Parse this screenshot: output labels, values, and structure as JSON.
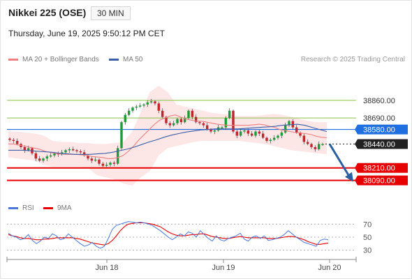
{
  "header": {
    "title": "Nikkei 225 (OSE)",
    "timeframe": "30 MIN",
    "datetime": "Thursday, June 19, 2025 9:50:12 PM CET"
  },
  "legend": {
    "ma20_bb": "MA 20 + Bollinger Bands",
    "ma50": "MA 50",
    "credit": "Research © 2025 Trading Central",
    "rsi": "RSI",
    "ma9": "9MA"
  },
  "colors": {
    "ma20": "#ef8080",
    "ma50": "#3a5fa8",
    "bollinger_fill": "#fde0e0",
    "bull": "#1f9c3a",
    "bear": "#c0282f",
    "support": "#e60000",
    "resistance": "#8ac24a",
    "pivot": "#1f6fe0",
    "rsi": "#4a78d8",
    "rsi_ma": "#e60000",
    "arrow": "#2a5fa0"
  },
  "chart_data": [
    {
      "type": "candlestick",
      "title": "Nikkei 225 (OSE)",
      "timeframe": "30 MIN",
      "x_labels": [
        "Jun 18",
        "Jun 19",
        "Jun 20"
      ],
      "y_range": [
        37980,
        39020
      ],
      "close_series": [
        38480,
        38470,
        38440,
        38410,
        38380,
        38400,
        38350,
        38300,
        38280,
        38300,
        38320,
        38330,
        38350,
        38340,
        38360,
        38380,
        38390,
        38380,
        38370,
        38360,
        38330,
        38300,
        38280,
        38290,
        38250,
        38230,
        38240,
        38260,
        38250,
        38400,
        38650,
        38720,
        38760,
        38790,
        38800,
        38810,
        38820,
        38840,
        38850,
        38830,
        38760,
        38700,
        38640,
        38620,
        38640,
        38680,
        38650,
        38690,
        38760,
        38700,
        38650,
        38640,
        38620,
        38580,
        38560,
        38570,
        38600,
        38600,
        38690,
        38760,
        38560,
        38520,
        38560,
        38570,
        38540,
        38520,
        38560,
        38540,
        38500,
        38470,
        38480,
        38500,
        38520,
        38550,
        38620,
        38660,
        38600,
        38550,
        38520,
        38460,
        38440,
        38410,
        38390,
        38440,
        38440
      ],
      "ma20": [
        38440,
        38440,
        38430,
        38420,
        38410,
        38400,
        38390,
        38370,
        38360,
        38350,
        38345,
        38340,
        38340,
        38340,
        38335,
        38330,
        38320,
        38315,
        38310,
        38300,
        38300,
        38310,
        38330,
        38370,
        38420,
        38480,
        38530,
        38580,
        38630,
        38670,
        38690,
        38710,
        38720,
        38700,
        38680,
        38670,
        38660,
        38660,
        38650,
        38640,
        38630,
        38625,
        38620,
        38620,
        38620,
        38620,
        38620,
        38625,
        38630,
        38625,
        38610,
        38600,
        38580,
        38570,
        38560,
        38550,
        38545,
        38540,
        38530,
        38515,
        38505,
        38500
      ],
      "ma50": [
        38380,
        38380,
        38380,
        38375,
        38370,
        38365,
        38360,
        38350,
        38345,
        38340,
        38340,
        38340,
        38345,
        38350,
        38360,
        38375,
        38390,
        38410,
        38435,
        38460,
        38480,
        38505,
        38525,
        38540,
        38555,
        38565,
        38575,
        38580,
        38585,
        38585,
        38585,
        38585,
        38590,
        38595,
        38600,
        38605,
        38610,
        38620,
        38625,
        38630,
        38620,
        38600,
        38580,
        38560
      ],
      "bb_upper": [
        38560,
        38560,
        38550,
        38540,
        38520,
        38470,
        38460,
        38460,
        38450,
        38450,
        38440,
        38440,
        38450,
        38460,
        38560,
        38750,
        38940,
        39000,
        38940,
        38820,
        38800,
        38780,
        38760,
        38740,
        38730,
        38720,
        38710,
        38710,
        38710,
        38720,
        38730,
        38720,
        38700,
        38680,
        38660,
        38650,
        38650
      ],
      "bb_lower": [
        38310,
        38300,
        38290,
        38280,
        38240,
        38220,
        38220,
        38220,
        38220,
        38210,
        38140,
        38120,
        38100,
        38060,
        38040,
        38120,
        38180,
        38330,
        38400,
        38420,
        38440,
        38460,
        38470,
        38470,
        38470,
        38470,
        38470,
        38460,
        38450,
        38440,
        38420,
        38400,
        38380,
        38370,
        38360,
        38350,
        38340
      ],
      "levels": [
        {
          "label": "38860.00",
          "value": 38860,
          "kind": "resistance"
        },
        {
          "label": "38690.00",
          "value": 38690,
          "kind": "resistance"
        },
        {
          "label": "38580.00",
          "value": 38580,
          "kind": "pivot"
        },
        {
          "label": "38440.00",
          "value": 38440,
          "kind": "last"
        },
        {
          "label": "38210.00",
          "value": 38210,
          "kind": "support"
        },
        {
          "label": "38090.00",
          "value": 38090,
          "kind": "support"
        }
      ],
      "projection": {
        "from": 38440,
        "to": 38090
      }
    },
    {
      "type": "line",
      "title": "RSI",
      "series": [
        {
          "name": "RSI",
          "values": [
            56,
            52,
            50,
            46,
            48,
            54,
            45,
            40,
            44,
            50,
            48,
            55,
            52,
            46,
            48,
            55,
            50,
            45,
            40,
            36,
            38,
            42,
            36,
            33,
            36,
            48,
            62,
            68,
            70,
            72,
            74,
            73,
            72,
            73,
            72,
            70,
            68,
            64,
            60,
            55,
            50,
            46,
            50,
            55,
            52,
            58,
            56,
            50,
            60,
            54,
            48,
            44,
            52,
            46,
            44,
            48,
            50,
            52,
            56,
            47,
            44,
            50,
            52,
            48,
            52,
            45,
            46,
            48,
            50,
            54,
            60,
            55,
            50,
            46,
            42,
            40,
            38,
            36,
            45,
            47,
            46
          ]
        },
        {
          "name": "9MA",
          "values": [
            54,
            52,
            51,
            49,
            48,
            48,
            47,
            46,
            46,
            47,
            47,
            48,
            49,
            49,
            49,
            49,
            49,
            48,
            47,
            45,
            43,
            41,
            40,
            39,
            38,
            40,
            45,
            52,
            60,
            66,
            70,
            71,
            72,
            72,
            72,
            71,
            70,
            68,
            66,
            62,
            58,
            55,
            53,
            52,
            52,
            53,
            54,
            54,
            55,
            55,
            53,
            51,
            50,
            49,
            48,
            48,
            49,
            50,
            51,
            50,
            49,
            49,
            49,
            49,
            49,
            48,
            48,
            48,
            49,
            50,
            51,
            51,
            50,
            48,
            46,
            43,
            41,
            39,
            39,
            40,
            41
          ]
        }
      ],
      "y_ticks": [
        30,
        50,
        70
      ],
      "y_range": [
        20,
        80
      ],
      "x_labels": [
        "Jun 18",
        "Jun 19",
        "Jun 20"
      ]
    }
  ]
}
